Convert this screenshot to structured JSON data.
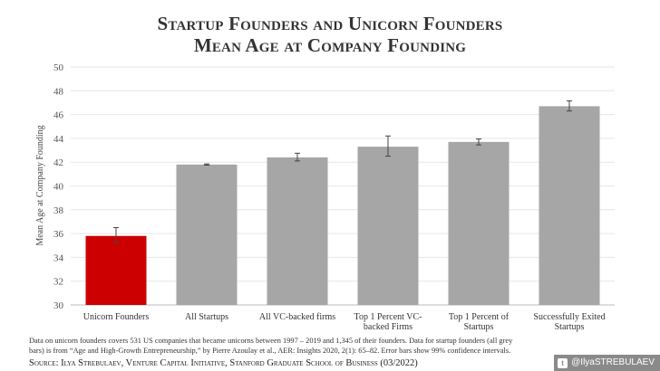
{
  "chart_data": {
    "type": "bar",
    "title_lines": [
      "Startup Founders and Unicorn Founders",
      "Mean Age at Company Founding"
    ],
    "ylabel": "Mean Age at Company Founding",
    "xlabel": "",
    "ylim": [
      30,
      50
    ],
    "yticks": [
      30,
      32,
      34,
      36,
      38,
      40,
      42,
      44,
      46,
      48,
      50
    ],
    "grid": true,
    "categories": [
      [
        "Unicorn Founders"
      ],
      [
        "All Startups"
      ],
      [
        "All VC-backed firms"
      ],
      [
        "Top 1 Percent VC-",
        "backed Firms"
      ],
      [
        "Top 1 Percent of",
        "Startups"
      ],
      [
        "Successfully Exited",
        "Startups"
      ]
    ],
    "values": [
      35.8,
      41.8,
      42.4,
      43.3,
      43.7,
      46.7
    ],
    "errors_low": [
      35.2,
      41.75,
      42.1,
      42.5,
      43.45,
      46.3
    ],
    "errors_high": [
      36.5,
      41.85,
      42.75,
      44.2,
      43.95,
      47.15
    ],
    "colors": [
      "#cc0000",
      "#a6a6a6",
      "#a6a6a6",
      "#a6a6a6",
      "#a6a6a6",
      "#a6a6a6"
    ]
  },
  "note": {
    "line1": "Data on unicorn founders covers 531 US companies that became unicorns between 1997 – 2019 and  1,345 of their founders. Data for startup founders (all grey",
    "line2": "bars) is from “Age and High-Growth Entrepreneurship,” by Pierre Azoulay et al., AER: Insights 2020, 2(1): 65–82. Error bars show 99% confidence intervals."
  },
  "source": "Source: Ilya Strebulaev, Venture Capital Initiative, Stanford Graduate School of Business (03/2022)",
  "handle": {
    "icon": "twitter-icon",
    "text": "@IlyaSTREBULAEV"
  }
}
